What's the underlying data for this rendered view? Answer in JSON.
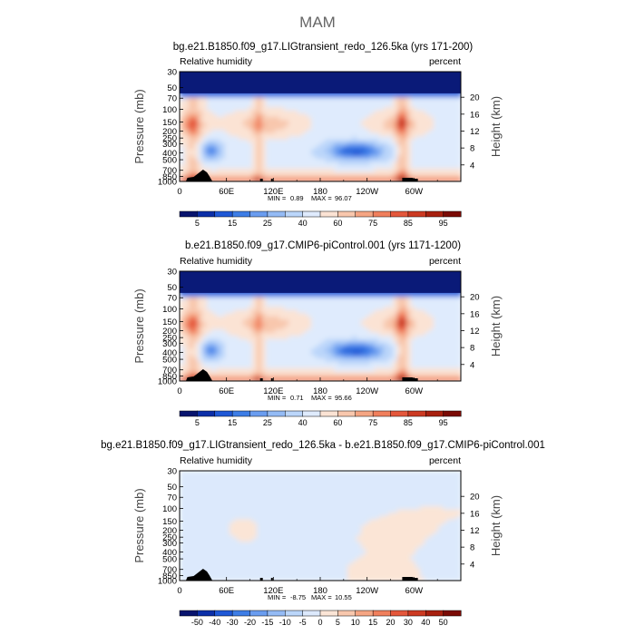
{
  "chart_data": {
    "type": "heatmap",
    "title": "MAM",
    "shared": {
      "left_label": "Pressure (mb)",
      "right_label": "Height (km)",
      "variable": "Relative humidity",
      "units": "percent",
      "x_ticks": [
        "0",
        "60E",
        "120E",
        "180",
        "120W",
        "60W"
      ],
      "x_tick_lons": [
        0,
        60,
        120,
        180,
        240,
        300
      ],
      "xlim": [
        0,
        360
      ],
      "y_ticks": [
        "30",
        "50",
        "70",
        "100",
        "150",
        "200",
        "250",
        "300",
        "400",
        "500",
        "700",
        "850",
        "1000"
      ],
      "y_tick_values": [
        30,
        50,
        70,
        100,
        150,
        200,
        250,
        300,
        400,
        500,
        700,
        850,
        1000
      ],
      "ylim": [
        30,
        1000
      ],
      "height_ticks": [
        "20",
        "16",
        "12",
        "8",
        "4"
      ],
      "height_tick_values": [
        20,
        16,
        12,
        8,
        4
      ]
    },
    "panels": [
      {
        "subtitle": "bg.e21.B1850.f09_g17.LIGtransient_redo_126.5ka (yrs 171-200)",
        "min_label": "MIN =",
        "min_value": "0.89",
        "max_label": "MAX =",
        "max_value": "96.07",
        "colorbar_labels": [
          "5",
          "15",
          "25",
          "40",
          "60",
          "75",
          "85",
          "95"
        ],
        "colorbar_colors": [
          "#08146e",
          "#0c2fa8",
          "#1f58d6",
          "#3d7de6",
          "#6a9df0",
          "#94bbf5",
          "#bbd6fa",
          "#dfebfd",
          "#fbe3d4",
          "#f8c7ad",
          "#f5a583",
          "#f07f5c",
          "#e4573b",
          "#cc3a22",
          "#a8200f",
          "#7a0a04"
        ],
        "field": "rh"
      },
      {
        "subtitle": "b.e21.B1850.f09_g17.CMIP6-piControl.001 (yrs 1171-1200)",
        "min_label": "MIN =",
        "min_value": "0.71",
        "max_label": "MAX =",
        "max_value": "95.66",
        "colorbar_labels": [
          "5",
          "15",
          "25",
          "40",
          "60",
          "75",
          "85",
          "95"
        ],
        "colorbar_colors": [
          "#08146e",
          "#0c2fa8",
          "#1f58d6",
          "#3d7de6",
          "#6a9df0",
          "#94bbf5",
          "#bbd6fa",
          "#dfebfd",
          "#fbe3d4",
          "#f8c7ad",
          "#f5a583",
          "#f07f5c",
          "#e4573b",
          "#cc3a22",
          "#a8200f",
          "#7a0a04"
        ],
        "field": "rh"
      },
      {
        "subtitle": "bg.e21.B1850.f09_g17.LIGtransient_redo_126.5ka - b.e21.B1850.f09_g17.CMIP6-piControl.001",
        "min_label": "MIN =",
        "min_value": "-8.75",
        "max_label": "MAX =",
        "max_value": "10.55",
        "colorbar_labels": [
          "-50",
          "-40",
          "-30",
          "-20",
          "-15",
          "-10",
          "-5",
          "0",
          "5",
          "10",
          "15",
          "20",
          "30",
          "40",
          "50"
        ],
        "colorbar_colors": [
          "#08146e",
          "#0c2fa8",
          "#1f58d6",
          "#3d7de6",
          "#6a9df0",
          "#94bbf5",
          "#bbd6fa",
          "#dce9fc",
          "#fbe5d6",
          "#f8c7ad",
          "#f5a583",
          "#f07f5c",
          "#e4573b",
          "#cc3a22",
          "#a8200f",
          "#7a0a04"
        ],
        "field": "diff"
      }
    ]
  }
}
